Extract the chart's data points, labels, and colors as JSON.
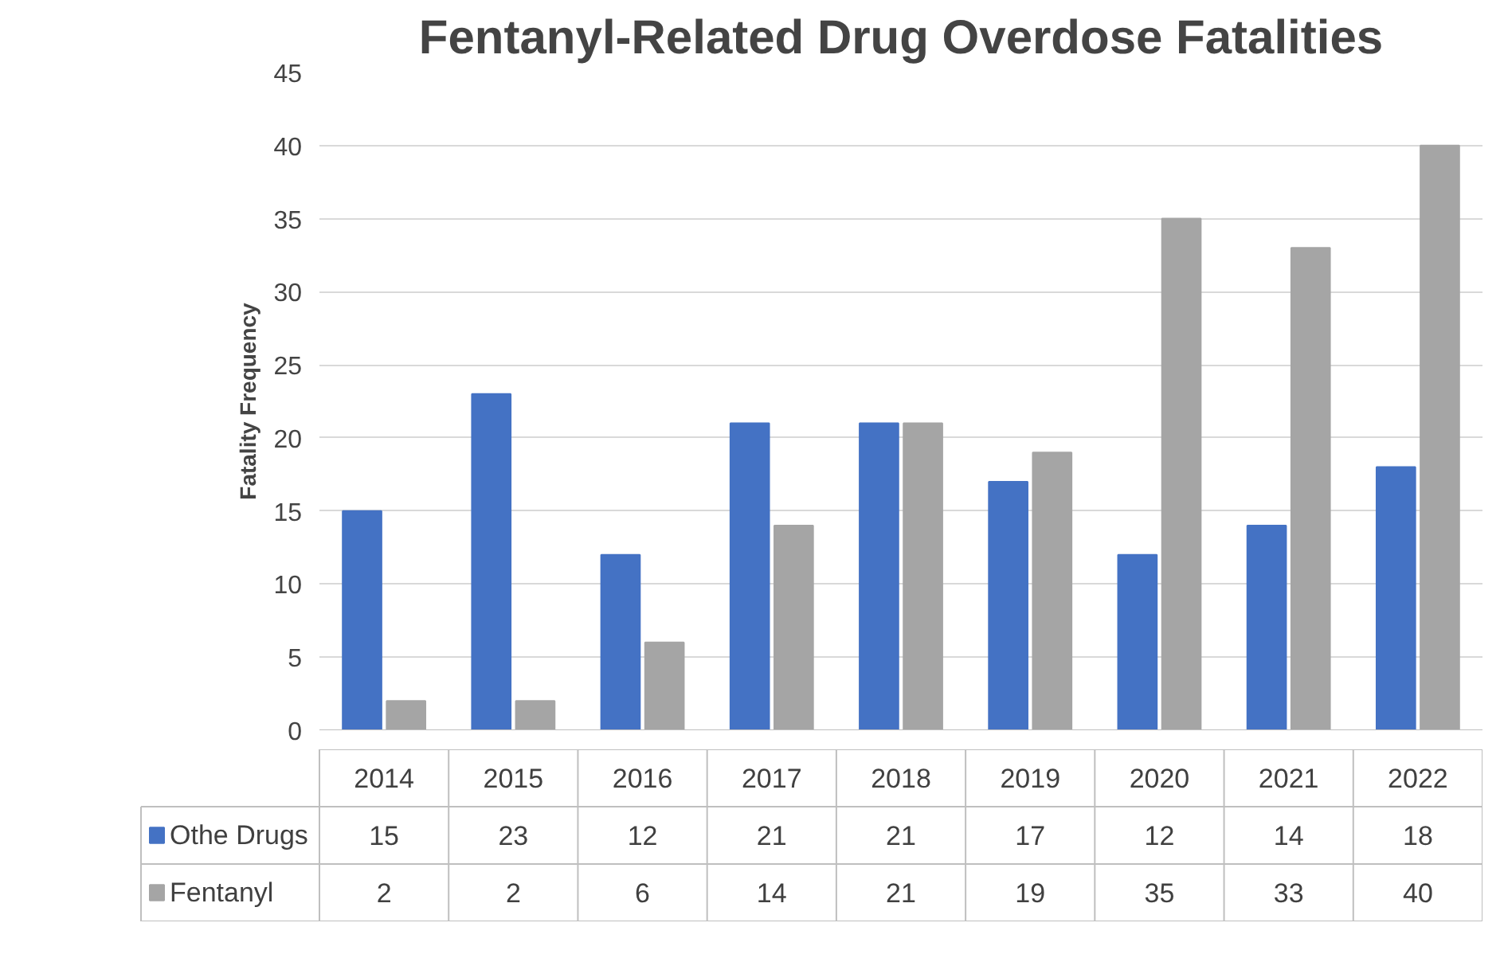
{
  "chart_data": {
    "type": "bar",
    "title": "Fentanyl-Related Drug Overdose Fatalities",
    "ylabel": "Fatality Frequency",
    "categories": [
      "2014",
      "2015",
      "2016",
      "2017",
      "2018",
      "2019",
      "2020",
      "2021",
      "2022"
    ],
    "series": [
      {
        "name": "Othe Drugs",
        "color": "#4472c4",
        "values": [
          15,
          23,
          12,
          21,
          21,
          17,
          12,
          14,
          18
        ]
      },
      {
        "name": "Fentanyl",
        "color": "#a5a5a5",
        "values": [
          2,
          2,
          6,
          14,
          21,
          19,
          35,
          33,
          40
        ]
      }
    ],
    "ylim": [
      0,
      45
    ],
    "yticks": [
      0,
      5,
      10,
      15,
      20,
      25,
      30,
      35,
      40,
      45
    ],
    "grid": "y",
    "legend": "bottom",
    "data_labels": true
  }
}
